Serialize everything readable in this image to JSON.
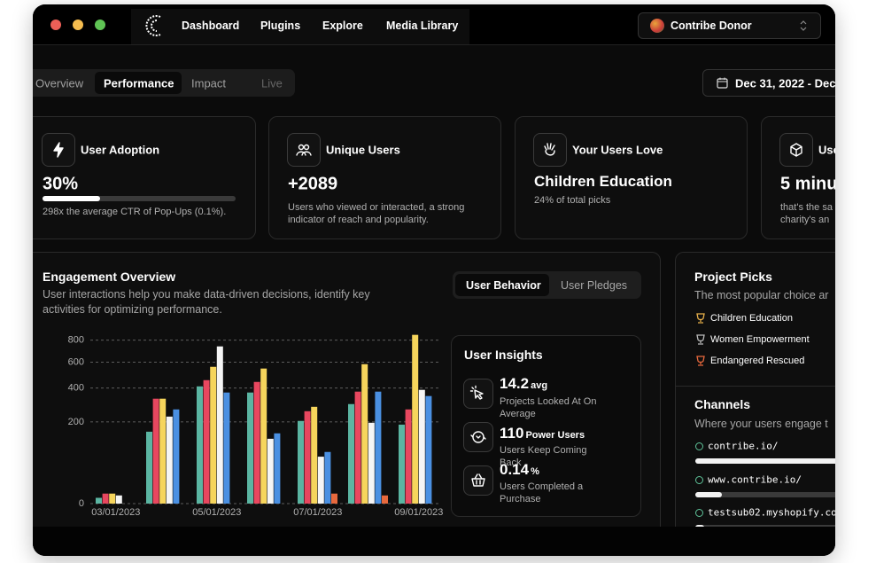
{
  "nav": {
    "items": [
      "Dashboard",
      "Plugins",
      "Explore",
      "Media Library"
    ],
    "account": "Contribe Donor"
  },
  "tabs": {
    "items": [
      "Overview",
      "Performance",
      "Impact",
      "Live"
    ],
    "active": 1,
    "date_range": "Dec 31, 2022 - Dec"
  },
  "cards": [
    {
      "title": "User Adoption",
      "value": "30%",
      "progress": 30,
      "description": "298x the average CTR of Pop-Ups (0.1%)."
    },
    {
      "title": "Unique Users",
      "value": "+2089",
      "description": "Users who viewed or interacted, a strong indicator of reach and popularity."
    },
    {
      "title": "Your Users Love",
      "value": "Children Education",
      "description": "24% of total picks"
    },
    {
      "title": "Use",
      "value": "5 minu",
      "description": "that's the sa charity's an"
    }
  ],
  "engagement": {
    "title": "Engagement Overview",
    "subtitle": "User interactions help you make data-driven decisions, identify key activities for optimizing performance.",
    "toggle": [
      "User Behavior",
      "User Pledges"
    ],
    "active": 0
  },
  "chart_data": {
    "type": "bar",
    "yscale": "sqrt",
    "categories": [
      "03/01/2023",
      null,
      "05/01/2023",
      null,
      "07/01/2023",
      null,
      "09/01/2023"
    ],
    "series": [
      {
        "color": "#5bb5a2",
        "values": [
          1,
          155,
          412,
          370,
          205,
          297,
          187
        ]
      },
      {
        "color": "#e8475f",
        "values": [
          3,
          330,
          457,
          444,
          256,
          376,
          266
        ]
      },
      {
        "color": "#f6d55c",
        "values": [
          3,
          330,
          561,
          547,
          281,
          583,
          854
        ]
      },
      {
        "color": "#f5f5f5",
        "values": [
          2,
          227,
          741,
          126,
          66,
          196,
          388
        ]
      },
      {
        "color": "#4a90e2",
        "values": [
          null,
          266,
          370,
          148,
          80,
          376,
          347
        ]
      },
      {
        "color": "#e8693d",
        "values": [
          null,
          null,
          null,
          null,
          3,
          2,
          null
        ]
      }
    ],
    "ylim": [
      0,
      860
    ],
    "yticks": [
      0,
      200,
      400,
      600,
      800
    ],
    "grid": true
  },
  "insights": {
    "title": "User Insights",
    "items": [
      {
        "value": "14.2",
        "unit": "avg",
        "description": "Projects Looked At On Average"
      },
      {
        "value": "110",
        "unit": "Power Users",
        "description": "Users Keep Coming Back"
      },
      {
        "value": "0.14",
        "unit": "%",
        "description": "Users Completed a Purchase"
      }
    ]
  },
  "project_picks": {
    "title": "Project Picks",
    "subtitle": "The most popular choice ar",
    "items": [
      "Children Education",
      "Women Empowerment",
      "Endangered Rescued"
    ]
  },
  "channels": {
    "title": "Channels",
    "subtitle": "Where your users engage t",
    "items": [
      {
        "name": "contribe.io/",
        "share": 85
      },
      {
        "name": "www.contribe.io/",
        "share": 15
      },
      {
        "name": "testsub02.myshopify.co",
        "share": 5
      }
    ]
  }
}
